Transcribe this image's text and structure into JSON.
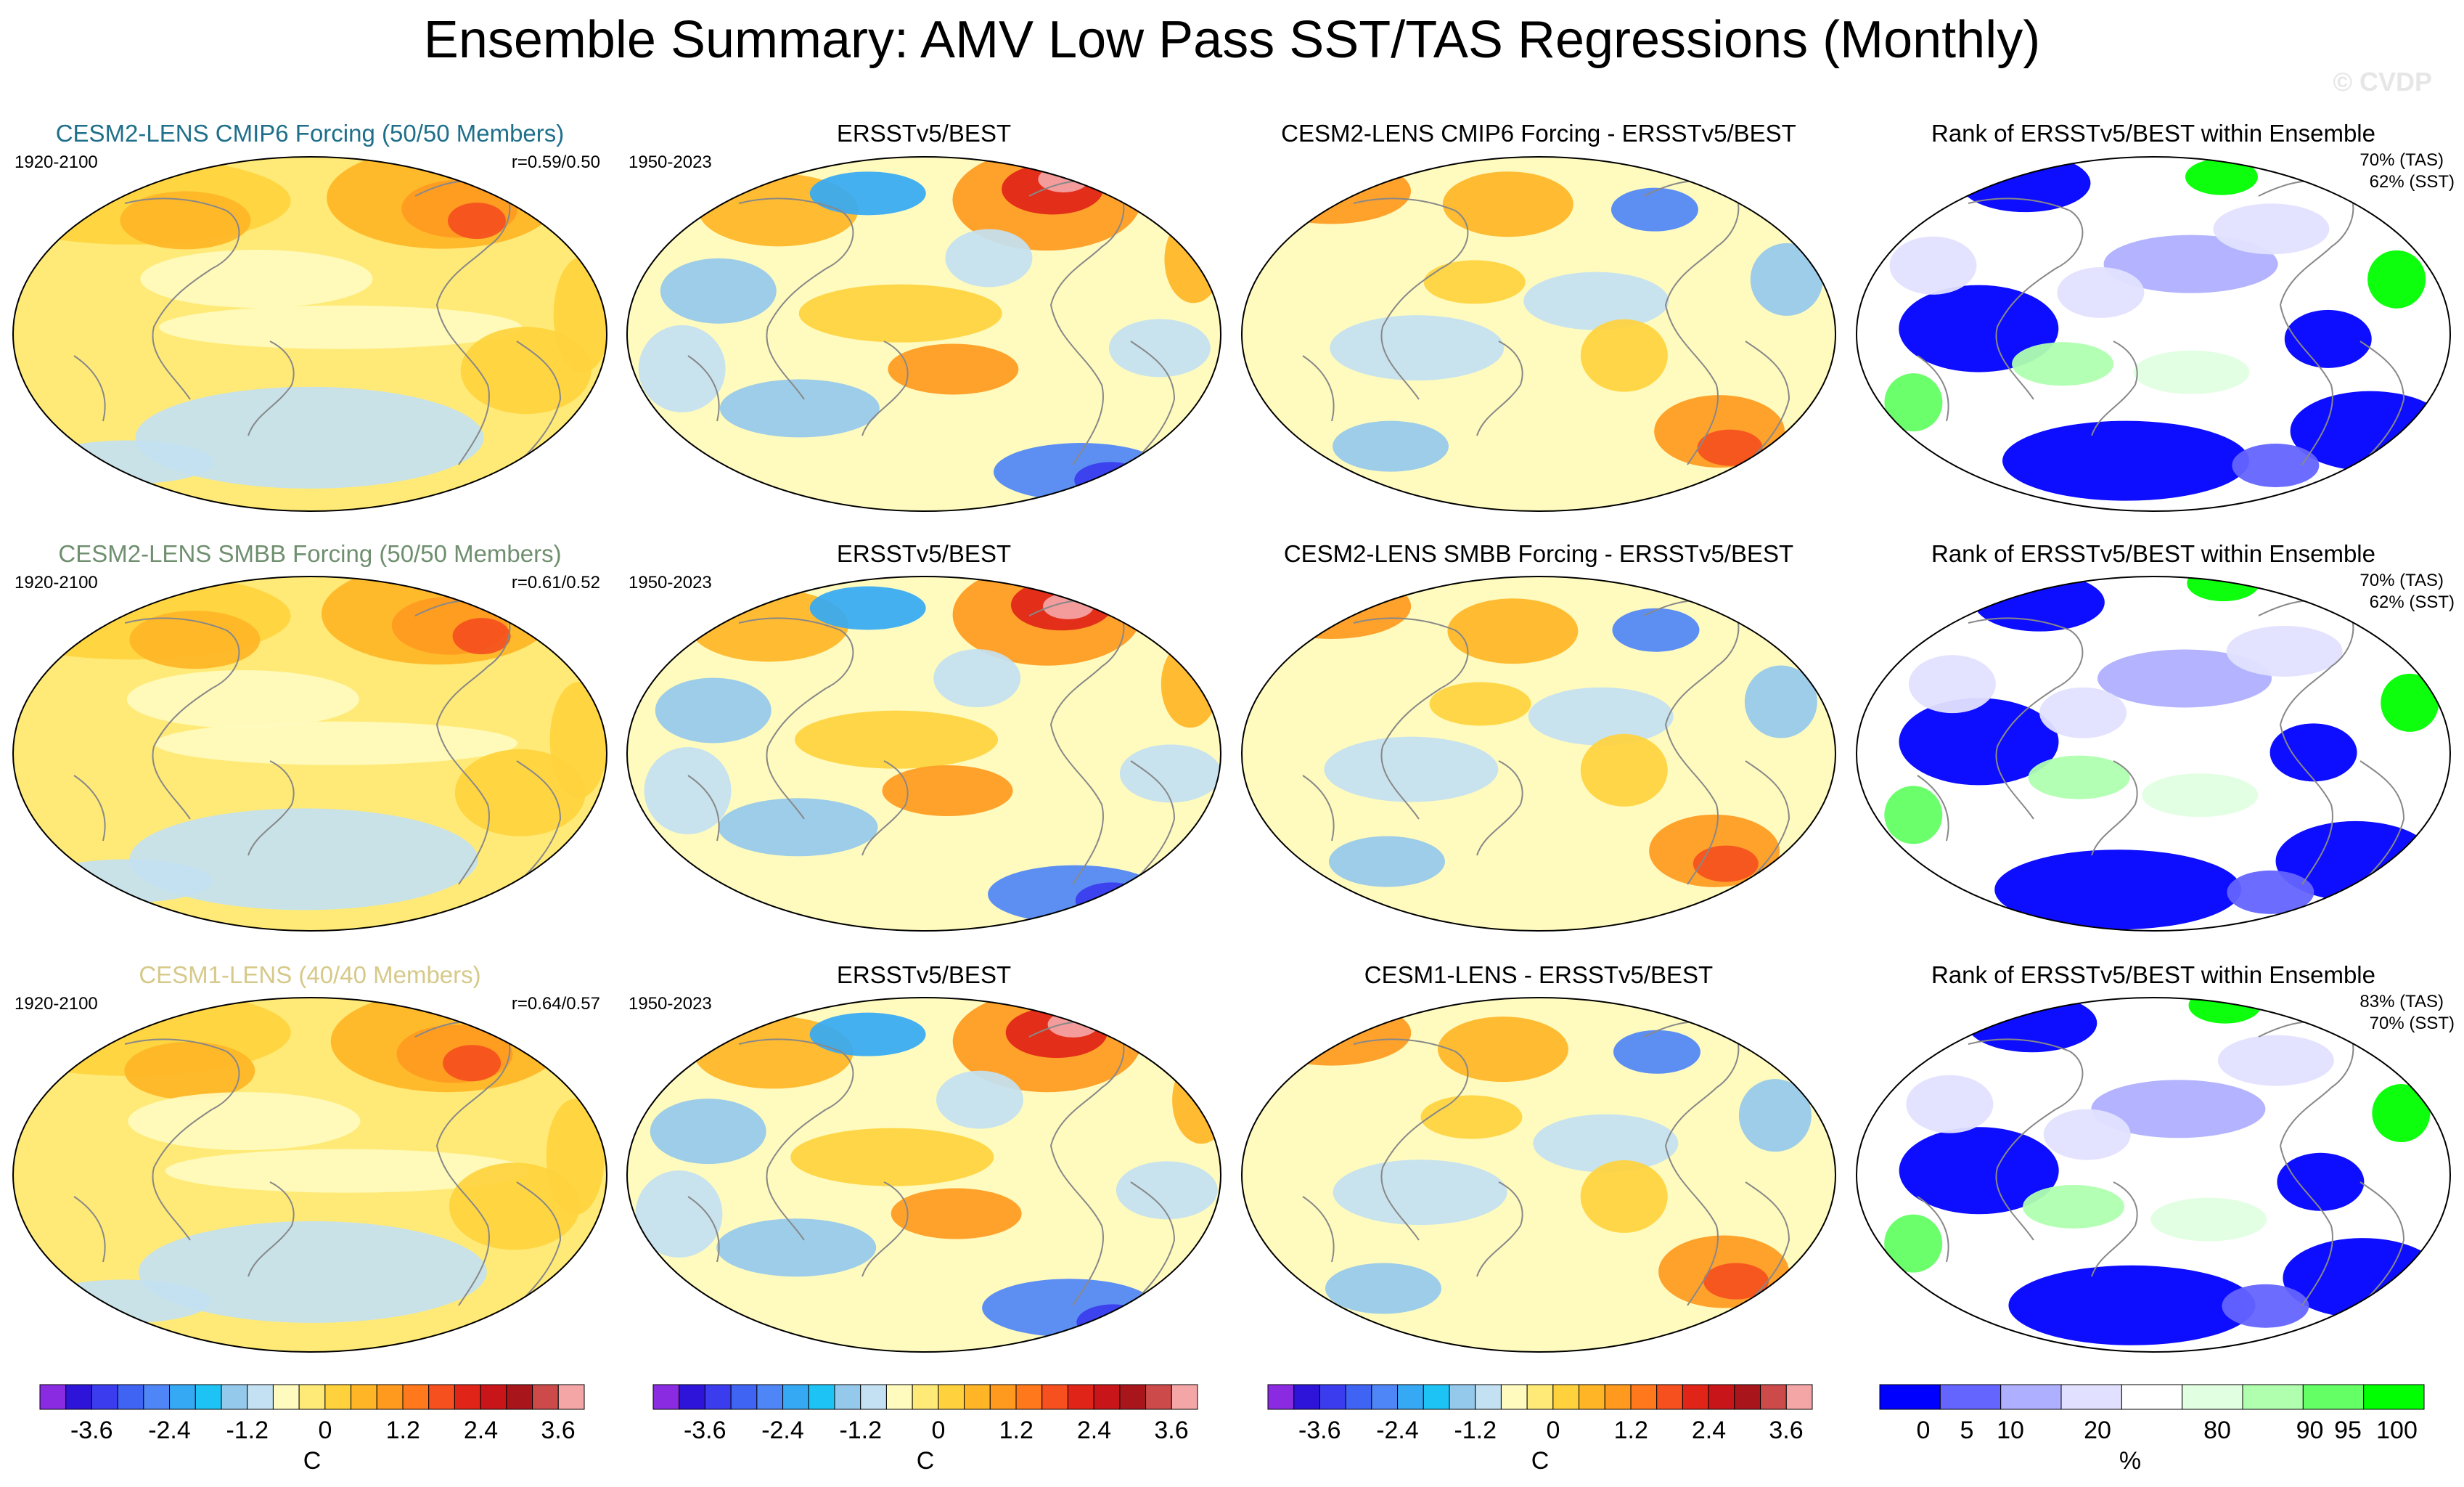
{
  "title": "Ensemble Summary: AMV Low Pass SST/TAS Regressions (Monthly)",
  "watermark": "© CVDP",
  "rows": [
    {
      "model_title": "CESM2-LENS CMIP6 Forcing (50/50 Members)",
      "model_title_color": "#1f6f8b",
      "model_period": "1920-2100",
      "model_corr": "r=0.59/0.50",
      "obs_title": "ERSSTv5/BEST",
      "obs_period": "1950-2023",
      "diff_title": "CESM2-LENS CMIP6 Forcing - ERSSTv5/BEST",
      "rank_title": "Rank of ERSSTv5/BEST within Ensemble",
      "rank_tas": "70% (TAS)",
      "rank_sst": "62% (SST)"
    },
    {
      "model_title": "CESM2-LENS SMBB Forcing (50/50 Members)",
      "model_title_color": "#6f8f6f",
      "model_period": "1920-2100",
      "model_corr": "r=0.61/0.52",
      "obs_title": "ERSSTv5/BEST",
      "obs_period": "1950-2023",
      "diff_title": "CESM2-LENS SMBB Forcing - ERSSTv5/BEST",
      "rank_title": "Rank of ERSSTv5/BEST within Ensemble",
      "rank_tas": "70% (TAS)",
      "rank_sst": "62% (SST)"
    },
    {
      "model_title": "CESM1-LENS (40/40 Members)",
      "model_title_color": "#d6c98a",
      "model_period": "1920-2100",
      "model_corr": "r=0.64/0.57",
      "obs_title": "ERSSTv5/BEST",
      "obs_period": "1950-2023",
      "diff_title": "CESM1-LENS - ERSSTv5/BEST",
      "rank_title": "Rank of ERSSTv5/BEST within Ensemble",
      "rank_tas": "83% (TAS)",
      "rank_sst": "70% (SST)"
    }
  ],
  "chart_data": {
    "type": "heatmap",
    "title": "Ensemble Summary: AMV Low Pass SST/TAS Regressions (Monthly)",
    "temperature_colorbar": {
      "unit": "C",
      "tick_labels": [
        "-3.6",
        "-2.4",
        "-1.2",
        "0",
        "1.2",
        "2.4",
        "3.6"
      ],
      "colors": [
        "#8a2be2",
        "#2e14d8",
        "#3a3cee",
        "#3f63f2",
        "#4f86f7",
        "#35a9f4",
        "#1ec3f5",
        "#95c9ec",
        "#c3e1f2",
        "#fffbbf",
        "#ffea77",
        "#ffd23d",
        "#ffb526",
        "#ff9a1f",
        "#ff781c",
        "#f5501e",
        "#e12418",
        "#c8151a",
        "#a8161c",
        "#cc4a4a",
        "#f4a6a6"
      ]
    },
    "rank_colorbar": {
      "unit": "%",
      "tick_labels": [
        "0",
        "5",
        "10",
        "20",
        "80",
        "90",
        "95",
        "100"
      ],
      "colors": [
        "#0000ff",
        "#6464ff",
        "#afafff",
        "#e1e1ff",
        "#ffffff",
        "#e1ffe1",
        "#afffaf",
        "#64ff64",
        "#00ff00"
      ]
    }
  }
}
